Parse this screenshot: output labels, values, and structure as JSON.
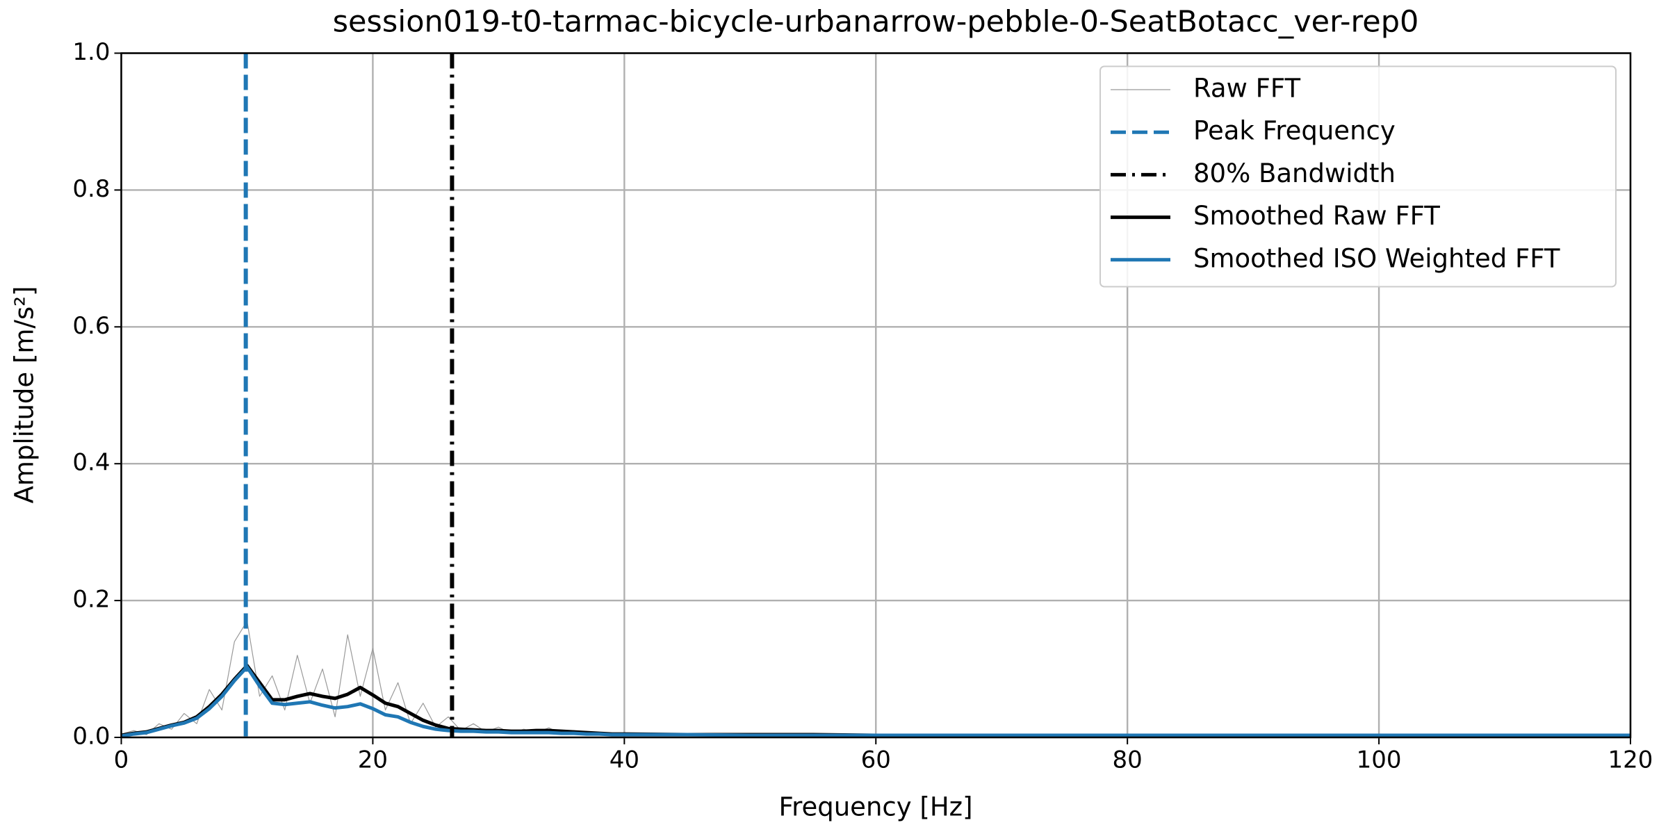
{
  "chart_data": {
    "type": "line",
    "title": "session019-t0-tarmac-bicycle-urbanarrow-pebble-0-SeatBotacc_ver-rep0",
    "x_label": "Frequency [Hz]",
    "y_label": "Amplitude [m/s²]",
    "xlim": [
      0,
      120
    ],
    "ylim": [
      0,
      1
    ],
    "xticks": [
      0,
      20,
      40,
      60,
      80,
      100,
      120
    ],
    "yticks": [
      {
        "value": 0,
        "label": "0.0"
      },
      {
        "value": 0.2,
        "label": "0.2"
      },
      {
        "value": 0.4,
        "label": "0.4"
      },
      {
        "value": 0.6,
        "label": "0.6"
      },
      {
        "value": 0.8,
        "label": "0.8"
      },
      {
        "value": 1,
        "label": "1.0"
      }
    ],
    "grid": true,
    "legend": "upper right",
    "x": [
      0,
      1,
      2,
      3,
      4,
      5,
      6,
      7,
      8,
      9,
      10,
      11,
      12,
      13,
      14,
      15,
      16,
      17,
      18,
      19,
      20,
      21,
      22,
      23,
      24,
      25,
      26,
      27,
      28,
      29,
      30,
      31,
      32,
      33,
      34,
      35,
      36,
      37,
      38,
      39,
      40,
      45,
      50,
      55,
      60,
      65,
      70,
      75,
      80,
      85,
      90,
      95,
      100,
      105,
      110,
      115,
      120
    ],
    "series": [
      {
        "name": "Raw FFT",
        "color": "#999999",
        "linestyle": "solid",
        "width": "thin",
        "values": [
          0.005,
          0.01,
          0.004,
          0.02,
          0.012,
          0.035,
          0.02,
          0.07,
          0.04,
          0.14,
          0.17,
          0.06,
          0.09,
          0.04,
          0.12,
          0.05,
          0.1,
          0.03,
          0.15,
          0.06,
          0.13,
          0.04,
          0.08,
          0.02,
          0.05,
          0.015,
          0.03,
          0.01,
          0.02,
          0.008,
          0.015,
          0.006,
          0.012,
          0.007,
          0.014,
          0.005,
          0.01,
          0.004,
          0.007,
          0.003,
          0.005,
          0.004,
          0.004,
          0.003,
          0.003,
          0.003,
          0.003,
          0.003,
          0.003,
          0.003,
          0.002,
          0.002,
          0.002,
          0.002,
          0.002,
          0.002,
          0.002
        ]
      },
      {
        "name": "Smoothed Raw FFT",
        "color": "#000000",
        "linestyle": "solid",
        "width": "thick",
        "values": [
          0.003,
          0.006,
          0.008,
          0.013,
          0.018,
          0.022,
          0.03,
          0.045,
          0.063,
          0.085,
          0.105,
          0.08,
          0.055,
          0.055,
          0.06,
          0.064,
          0.06,
          0.057,
          0.063,
          0.073,
          0.062,
          0.05,
          0.045,
          0.035,
          0.025,
          0.018,
          0.013,
          0.012,
          0.011,
          0.01,
          0.01,
          0.009,
          0.009,
          0.01,
          0.01,
          0.009,
          0.008,
          0.007,
          0.006,
          0.005,
          0.005,
          0.004,
          0.004,
          0.004,
          0.003,
          0.003,
          0.003,
          0.003,
          0.003,
          0.003,
          0.003,
          0.003,
          0.003,
          0.003,
          0.003,
          0.003,
          0.003
        ]
      },
      {
        "name": "Smoothed ISO Weighted FFT",
        "color": "#1f77b4",
        "linestyle": "solid",
        "width": "thick",
        "values": [
          0.002,
          0.005,
          0.007,
          0.012,
          0.017,
          0.021,
          0.028,
          0.042,
          0.06,
          0.083,
          0.103,
          0.075,
          0.05,
          0.048,
          0.05,
          0.052,
          0.047,
          0.043,
          0.045,
          0.049,
          0.042,
          0.033,
          0.03,
          0.022,
          0.016,
          0.012,
          0.01,
          0.009,
          0.009,
          0.008,
          0.008,
          0.007,
          0.007,
          0.007,
          0.007,
          0.006,
          0.006,
          0.005,
          0.005,
          0.004,
          0.004,
          0.004,
          0.003,
          0.003,
          0.003,
          0.003,
          0.003,
          0.003,
          0.003,
          0.003,
          0.003,
          0.003,
          0.003,
          0.003,
          0.003,
          0.003,
          0.003
        ]
      }
    ],
    "vlines": [
      {
        "name": "Peak Frequency",
        "x": 9.9,
        "color": "#1f77b4",
        "linestyle": "dashed"
      },
      {
        "name": "80% Bandwidth",
        "x": 26.3,
        "color": "#000000",
        "linestyle": "dashdot"
      }
    ]
  }
}
